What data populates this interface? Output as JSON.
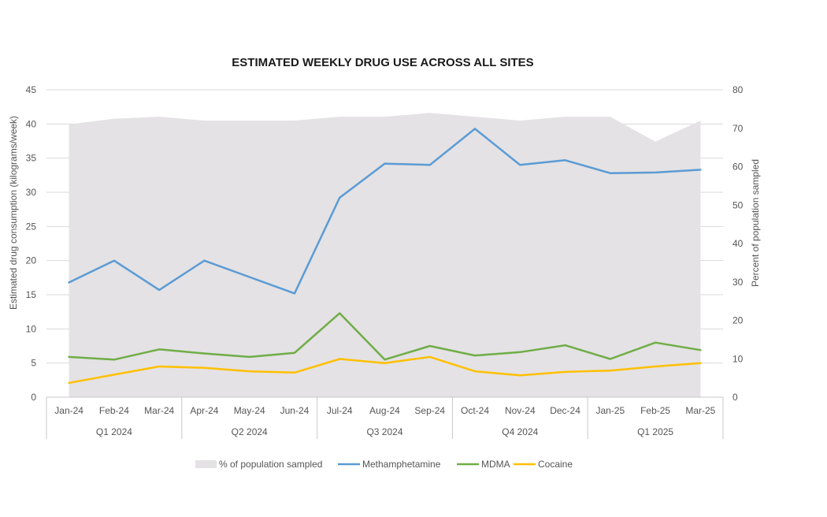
{
  "chart_data": {
    "type": "line",
    "title": "ESTIMATED WEEKLY DRUG USE ACROSS ALL SITES",
    "ylabel": "Estimated drug consumption (kilograms/week)",
    "y2label": "Percent of population sampled",
    "ylim": [
      0,
      45
    ],
    "y2lim": [
      0,
      80
    ],
    "yticks": [
      0,
      5,
      10,
      15,
      20,
      25,
      30,
      35,
      40,
      45
    ],
    "y2ticks": [
      0,
      10,
      20,
      30,
      40,
      50,
      60,
      70,
      80
    ],
    "grid": true,
    "legend_position": "bottom",
    "categories": [
      "Jan-24",
      "Feb-24",
      "Mar-24",
      "Apr-24",
      "May-24",
      "Jun-24",
      "Jul-24",
      "Aug-24",
      "Sep-24",
      "Oct-24",
      "Nov-24",
      "Dec-24",
      "Jan-25",
      "Feb-25",
      "Mar-25"
    ],
    "groups": [
      {
        "label": "Q1 2024",
        "count": 3
      },
      {
        "label": "Q2 2024",
        "count": 3
      },
      {
        "label": "Q3 2024",
        "count": 3
      },
      {
        "label": "Q4 2024",
        "count": 3
      },
      {
        "label": "Q1 2025",
        "count": 3
      }
    ],
    "series": [
      {
        "name": "% of population sampled",
        "kind": "area",
        "axis": "right",
        "color": "#e4e2e4",
        "values": [
          71,
          72.5,
          73,
          72,
          72,
          72,
          73,
          73,
          74,
          73,
          72,
          73,
          73,
          66.5,
          72
        ]
      },
      {
        "name": "Methamphetamine",
        "kind": "line",
        "axis": "left",
        "color": "#5b9bd5",
        "values": [
          16.8,
          20,
          15.7,
          20,
          17.6,
          15.2,
          29.2,
          34.2,
          34,
          39.3,
          34,
          34.7,
          32.8,
          32.9,
          33.3
        ]
      },
      {
        "name": "MDMA",
        "kind": "line",
        "axis": "left",
        "color": "#70ad47",
        "values": [
          5.9,
          5.5,
          7,
          6.4,
          5.9,
          6.5,
          12.3,
          5.5,
          7.5,
          6.1,
          6.6,
          7.6,
          5.6,
          8,
          6.9
        ]
      },
      {
        "name": "Cocaine",
        "kind": "line",
        "axis": "left",
        "color": "#ffc000",
        "values": [
          2.1,
          3.3,
          4.5,
          4.3,
          3.8,
          3.6,
          5.6,
          5,
          5.9,
          3.8,
          3.2,
          3.7,
          3.9,
          4.5,
          5
        ]
      }
    ]
  }
}
